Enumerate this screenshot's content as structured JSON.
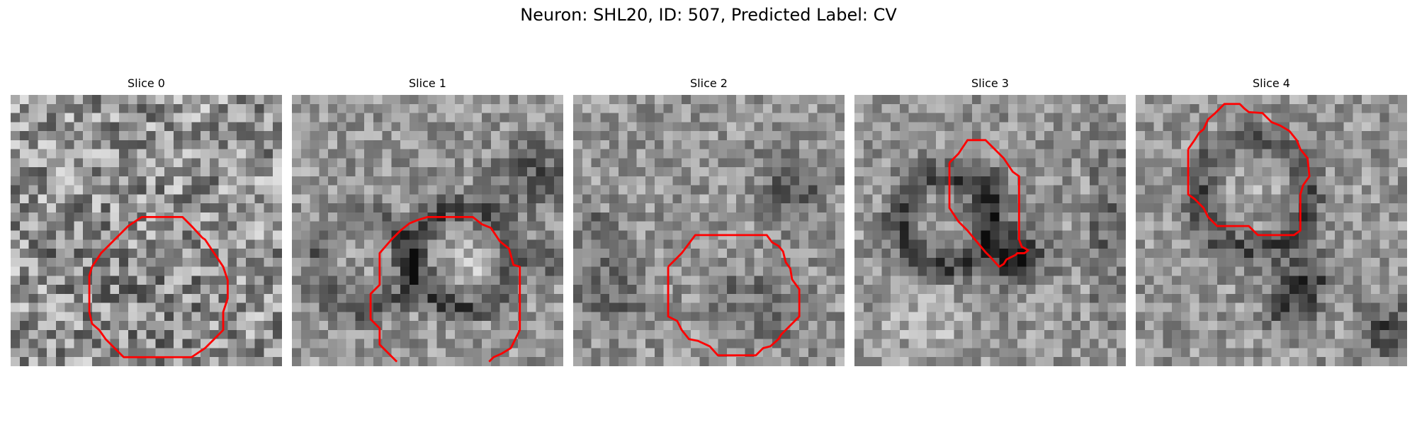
{
  "figure": {
    "suptitle": "Neuron: SHL20, ID: 507, Predicted Label: CV",
    "contour_color": "#ff0000",
    "colormap": "gray",
    "slices": [
      {
        "title": "Slice 0"
      },
      {
        "title": "Slice 1"
      },
      {
        "title": "Slice 2"
      },
      {
        "title": "Slice 3"
      },
      {
        "title": "Slice 4"
      }
    ]
  }
}
